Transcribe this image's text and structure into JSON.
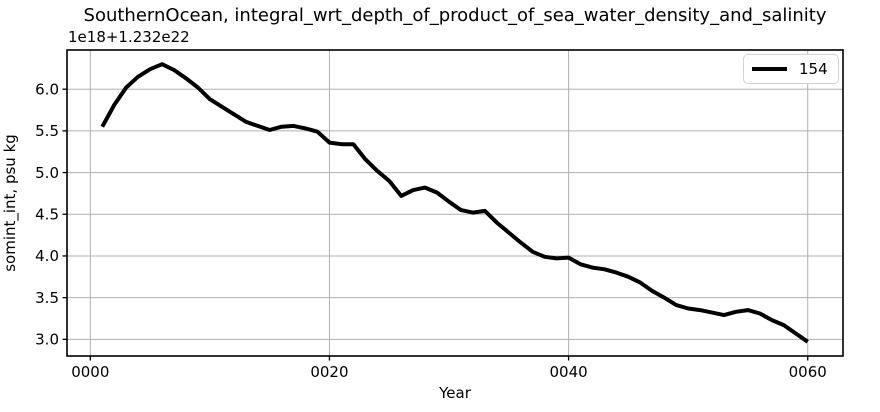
{
  "chart_data": {
    "type": "line",
    "title": "SouthernOcean, integral_wrt_depth_of_product_of_sea_water_density_and_salinity",
    "offset_text": "1e18+1.232e22",
    "xlabel": "Year",
    "ylabel": "somint_int, psu kg",
    "x_ticks": [
      0,
      20,
      40,
      60
    ],
    "x_tick_labels": [
      "0000",
      "0020",
      "0040",
      "0060"
    ],
    "y_ticks": [
      3.0,
      3.5,
      4.0,
      4.5,
      5.0,
      5.5,
      6.0
    ],
    "y_tick_labels": [
      "3.0",
      "3.5",
      "4.0",
      "4.5",
      "5.0",
      "5.5",
      "6.0"
    ],
    "xlim": [
      -1.95,
      62.95
    ],
    "ylim": [
      2.8,
      6.47
    ],
    "grid": true,
    "legend": {
      "position": "upper right",
      "entries": [
        {
          "label": "154",
          "color": "#000000",
          "linewidth": 4
        }
      ]
    },
    "series": [
      {
        "name": "154",
        "color": "#000000",
        "linewidth": 4,
        "x": [
          1,
          2,
          3,
          4,
          5,
          6,
          7,
          8,
          9,
          10,
          11,
          12,
          13,
          14,
          15,
          16,
          17,
          18,
          19,
          20,
          21,
          22,
          23,
          24,
          25,
          26,
          27,
          28,
          29,
          30,
          31,
          32,
          33,
          34,
          35,
          36,
          37,
          38,
          39,
          40,
          41,
          42,
          43,
          44,
          45,
          46,
          47,
          48,
          49,
          50,
          51,
          52,
          53,
          54,
          55,
          56,
          57,
          58,
          59,
          60
        ],
        "y": [
          5.55,
          5.81,
          6.02,
          6.15,
          6.24,
          6.3,
          6.23,
          6.13,
          6.02,
          5.88,
          5.79,
          5.7,
          5.61,
          5.56,
          5.51,
          5.55,
          5.56,
          5.53,
          5.49,
          5.36,
          5.34,
          5.34,
          5.16,
          5.02,
          4.9,
          4.72,
          4.79,
          4.82,
          4.76,
          4.65,
          4.55,
          4.52,
          4.54,
          4.4,
          4.28,
          4.16,
          4.05,
          3.99,
          3.97,
          3.98,
          3.9,
          3.86,
          3.84,
          3.8,
          3.75,
          3.68,
          3.58,
          3.5,
          3.41,
          3.37,
          3.35,
          3.32,
          3.29,
          3.33,
          3.35,
          3.31,
          3.23,
          3.17,
          3.07,
          2.97
        ]
      }
    ],
    "appearance": {
      "background_color": "#ffffff",
      "grid_color": "#b0b0b0",
      "spine_color": "#000000",
      "tick_color": "#000000",
      "text_color": "#000000"
    }
  }
}
